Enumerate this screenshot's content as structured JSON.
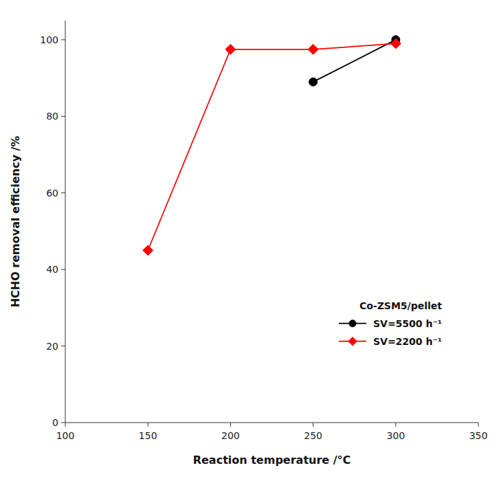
{
  "chart_data": {
    "type": "line",
    "x_label": "Reaction temperature /°C",
    "y_label": "HCHO removal efficiency /%",
    "legend_title": "Co-ZSM5/pellet",
    "series": [
      {
        "name": "SV=5500 h⁻¹",
        "color": "black",
        "marker": "circle",
        "x": [
          250,
          300
        ],
        "values": [
          89,
          100
        ]
      },
      {
        "name": "SV=2200 h⁻¹",
        "color": "red",
        "marker": "diamond",
        "x": [
          150,
          200,
          250,
          300
        ],
        "values": [
          45,
          97.5,
          97.5,
          99
        ]
      }
    ],
    "xlim": [
      100,
      350
    ],
    "ylim": [
      0,
      105
    ],
    "xticks": [
      100,
      150,
      200,
      250,
      300,
      350
    ],
    "yticks": [
      0,
      20,
      40,
      60,
      80,
      100
    ],
    "grid": false,
    "legend": "lower right"
  }
}
